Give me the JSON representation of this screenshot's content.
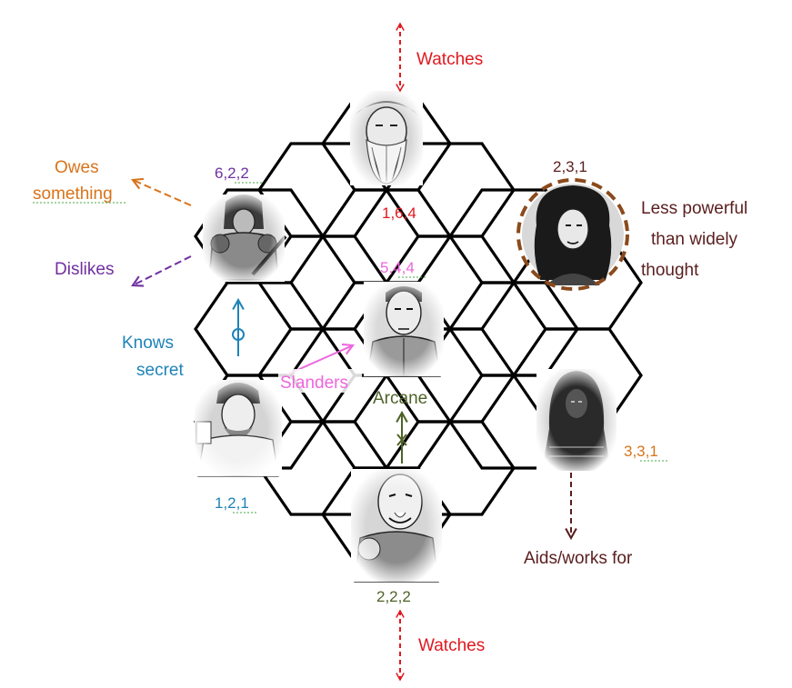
{
  "colors": {
    "red": "#e0181f",
    "orange": "#d9731a",
    "purple": "#7030a0",
    "blue": "#1f83b8",
    "pink": "#ee66dd",
    "green": "#4f6228",
    "brown": "#5a1e1e",
    "ring": "#8a4a1c"
  },
  "labels": {
    "watches_top": "Watches",
    "watches_bottom": "Watches",
    "owes_line1": "Owes",
    "owes_line2": "something",
    "dislikes": "Dislikes",
    "knows_line1": "Knows",
    "knows_line2": "secret",
    "slanders": "Slanders",
    "arcane": "Arcane",
    "less_line1": "Less powerful",
    "less_line2": "than widely",
    "less_line3": "thought",
    "aids": "Aids/works for"
  },
  "stats": {
    "top": "1,6,4",
    "upper_left": "6,2,2",
    "upper_right": "2,3,1",
    "center": "5,4,4",
    "lower_left": "1,2,1",
    "lower_right": "3,3,1",
    "bottom": "2,2,2"
  },
  "portraits": [
    {
      "id": "portrait-top",
      "icon": "old-bearded-man-portrait"
    },
    {
      "id": "portrait-upper-left",
      "icon": "armored-warrior-portrait"
    },
    {
      "id": "portrait-upper-right",
      "icon": "dark-haired-woman-portrait"
    },
    {
      "id": "portrait-center",
      "icon": "stern-man-portrait"
    },
    {
      "id": "portrait-lower-left",
      "icon": "bearded-rogue-portrait"
    },
    {
      "id": "portrait-lower-right",
      "icon": "hooded-figure-portrait"
    },
    {
      "id": "portrait-bottom",
      "icon": "bald-grinning-man-portrait"
    }
  ]
}
